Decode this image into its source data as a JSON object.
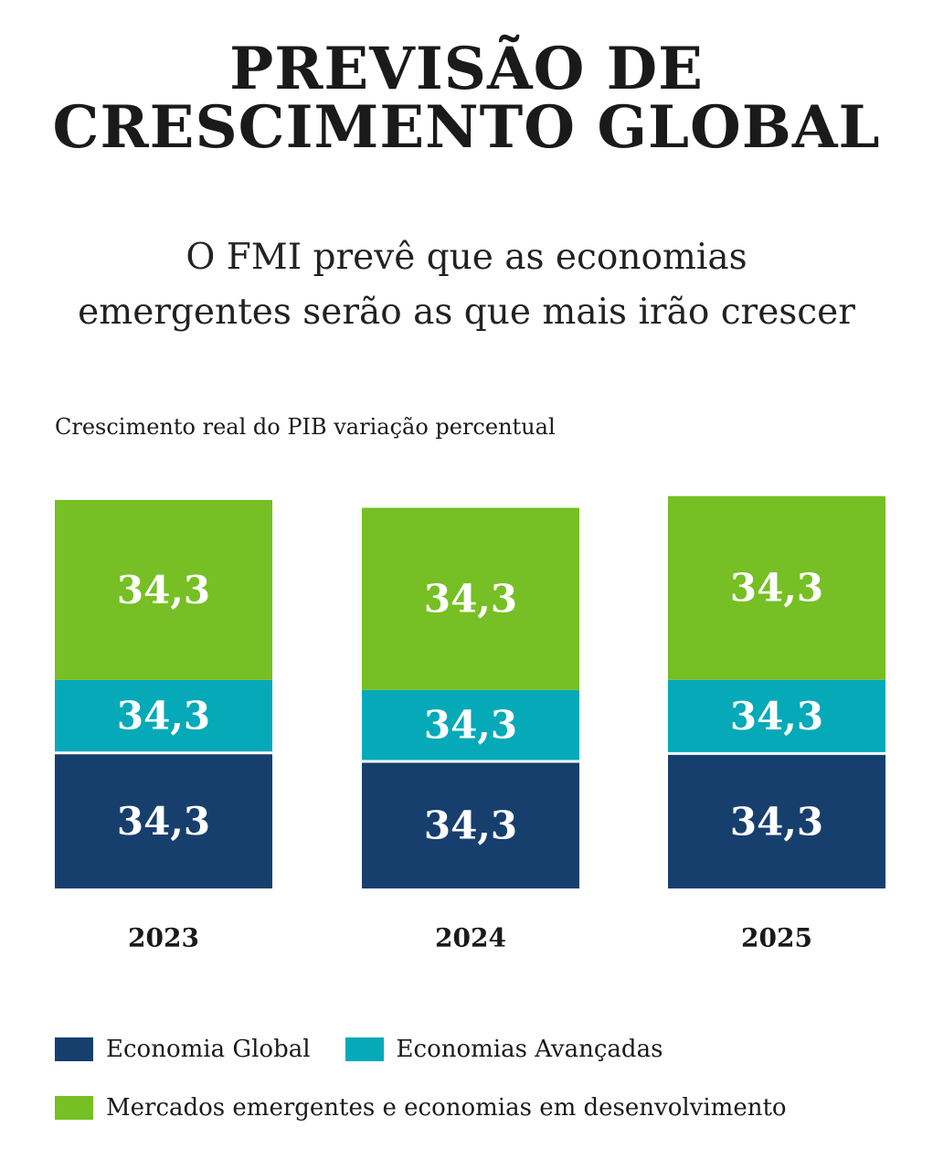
{
  "title": {
    "line1": "PREVISÃO DE",
    "line2": "CRESCIMENTO GLOBAL"
  },
  "subtitle": {
    "line1": "O FMI prevê que as economias",
    "line2": "emergentes serão as que mais irão crescer"
  },
  "chart_data": {
    "type": "bar",
    "stacked": true,
    "ylabel": "Crescimento real do PIB variação percentual",
    "categories": [
      "2023",
      "2024",
      "2025"
    ],
    "series": [
      {
        "name": "Economia Global",
        "color": "#173f6e",
        "values": [
          34.3,
          34.3,
          34.3
        ],
        "labels": [
          "34,3",
          "34,3",
          "34,3"
        ],
        "segment_share": [
          0.35,
          0.335,
          0.345
        ]
      },
      {
        "name": "Economias Avançadas",
        "color": "#05a9b8",
        "values": [
          34.3,
          34.3,
          34.3
        ],
        "labels": [
          "34,3",
          "34,3",
          "34,3"
        ],
        "segment_share": [
          0.19,
          0.19,
          0.19
        ]
      },
      {
        "name": "Mercados emergentes e economias em desenvolvimento",
        "color": "#76bf24",
        "values": [
          34.3,
          34.3,
          34.3
        ],
        "labels": [
          "34,3",
          "34,3",
          "34,3"
        ],
        "segment_share": [
          0.46,
          0.475,
          0.465
        ]
      }
    ],
    "total_relative": [
      1.0,
      0.98,
      1.01
    ],
    "grid": false,
    "legend_position": "bottom"
  },
  "legend": {
    "items": [
      {
        "label": "Economia Global",
        "color": "#173f6e"
      },
      {
        "label": "Economias Avançadas",
        "color": "#05a9b8"
      },
      {
        "label": "Mercados emergentes e economias em desenvolvimento",
        "color": "#76bf24"
      }
    ]
  }
}
